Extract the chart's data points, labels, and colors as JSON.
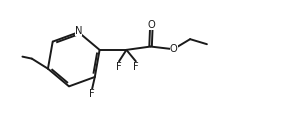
{
  "bg_color": "#ffffff",
  "line_color": "#1a1a1a",
  "line_width": 1.4,
  "font_size": 7.2,
  "fig_width": 2.85,
  "fig_height": 1.32,
  "dpi": 100,
  "xlim": [
    0.0,
    8.5
  ],
  "ylim": [
    0.5,
    4.2
  ]
}
